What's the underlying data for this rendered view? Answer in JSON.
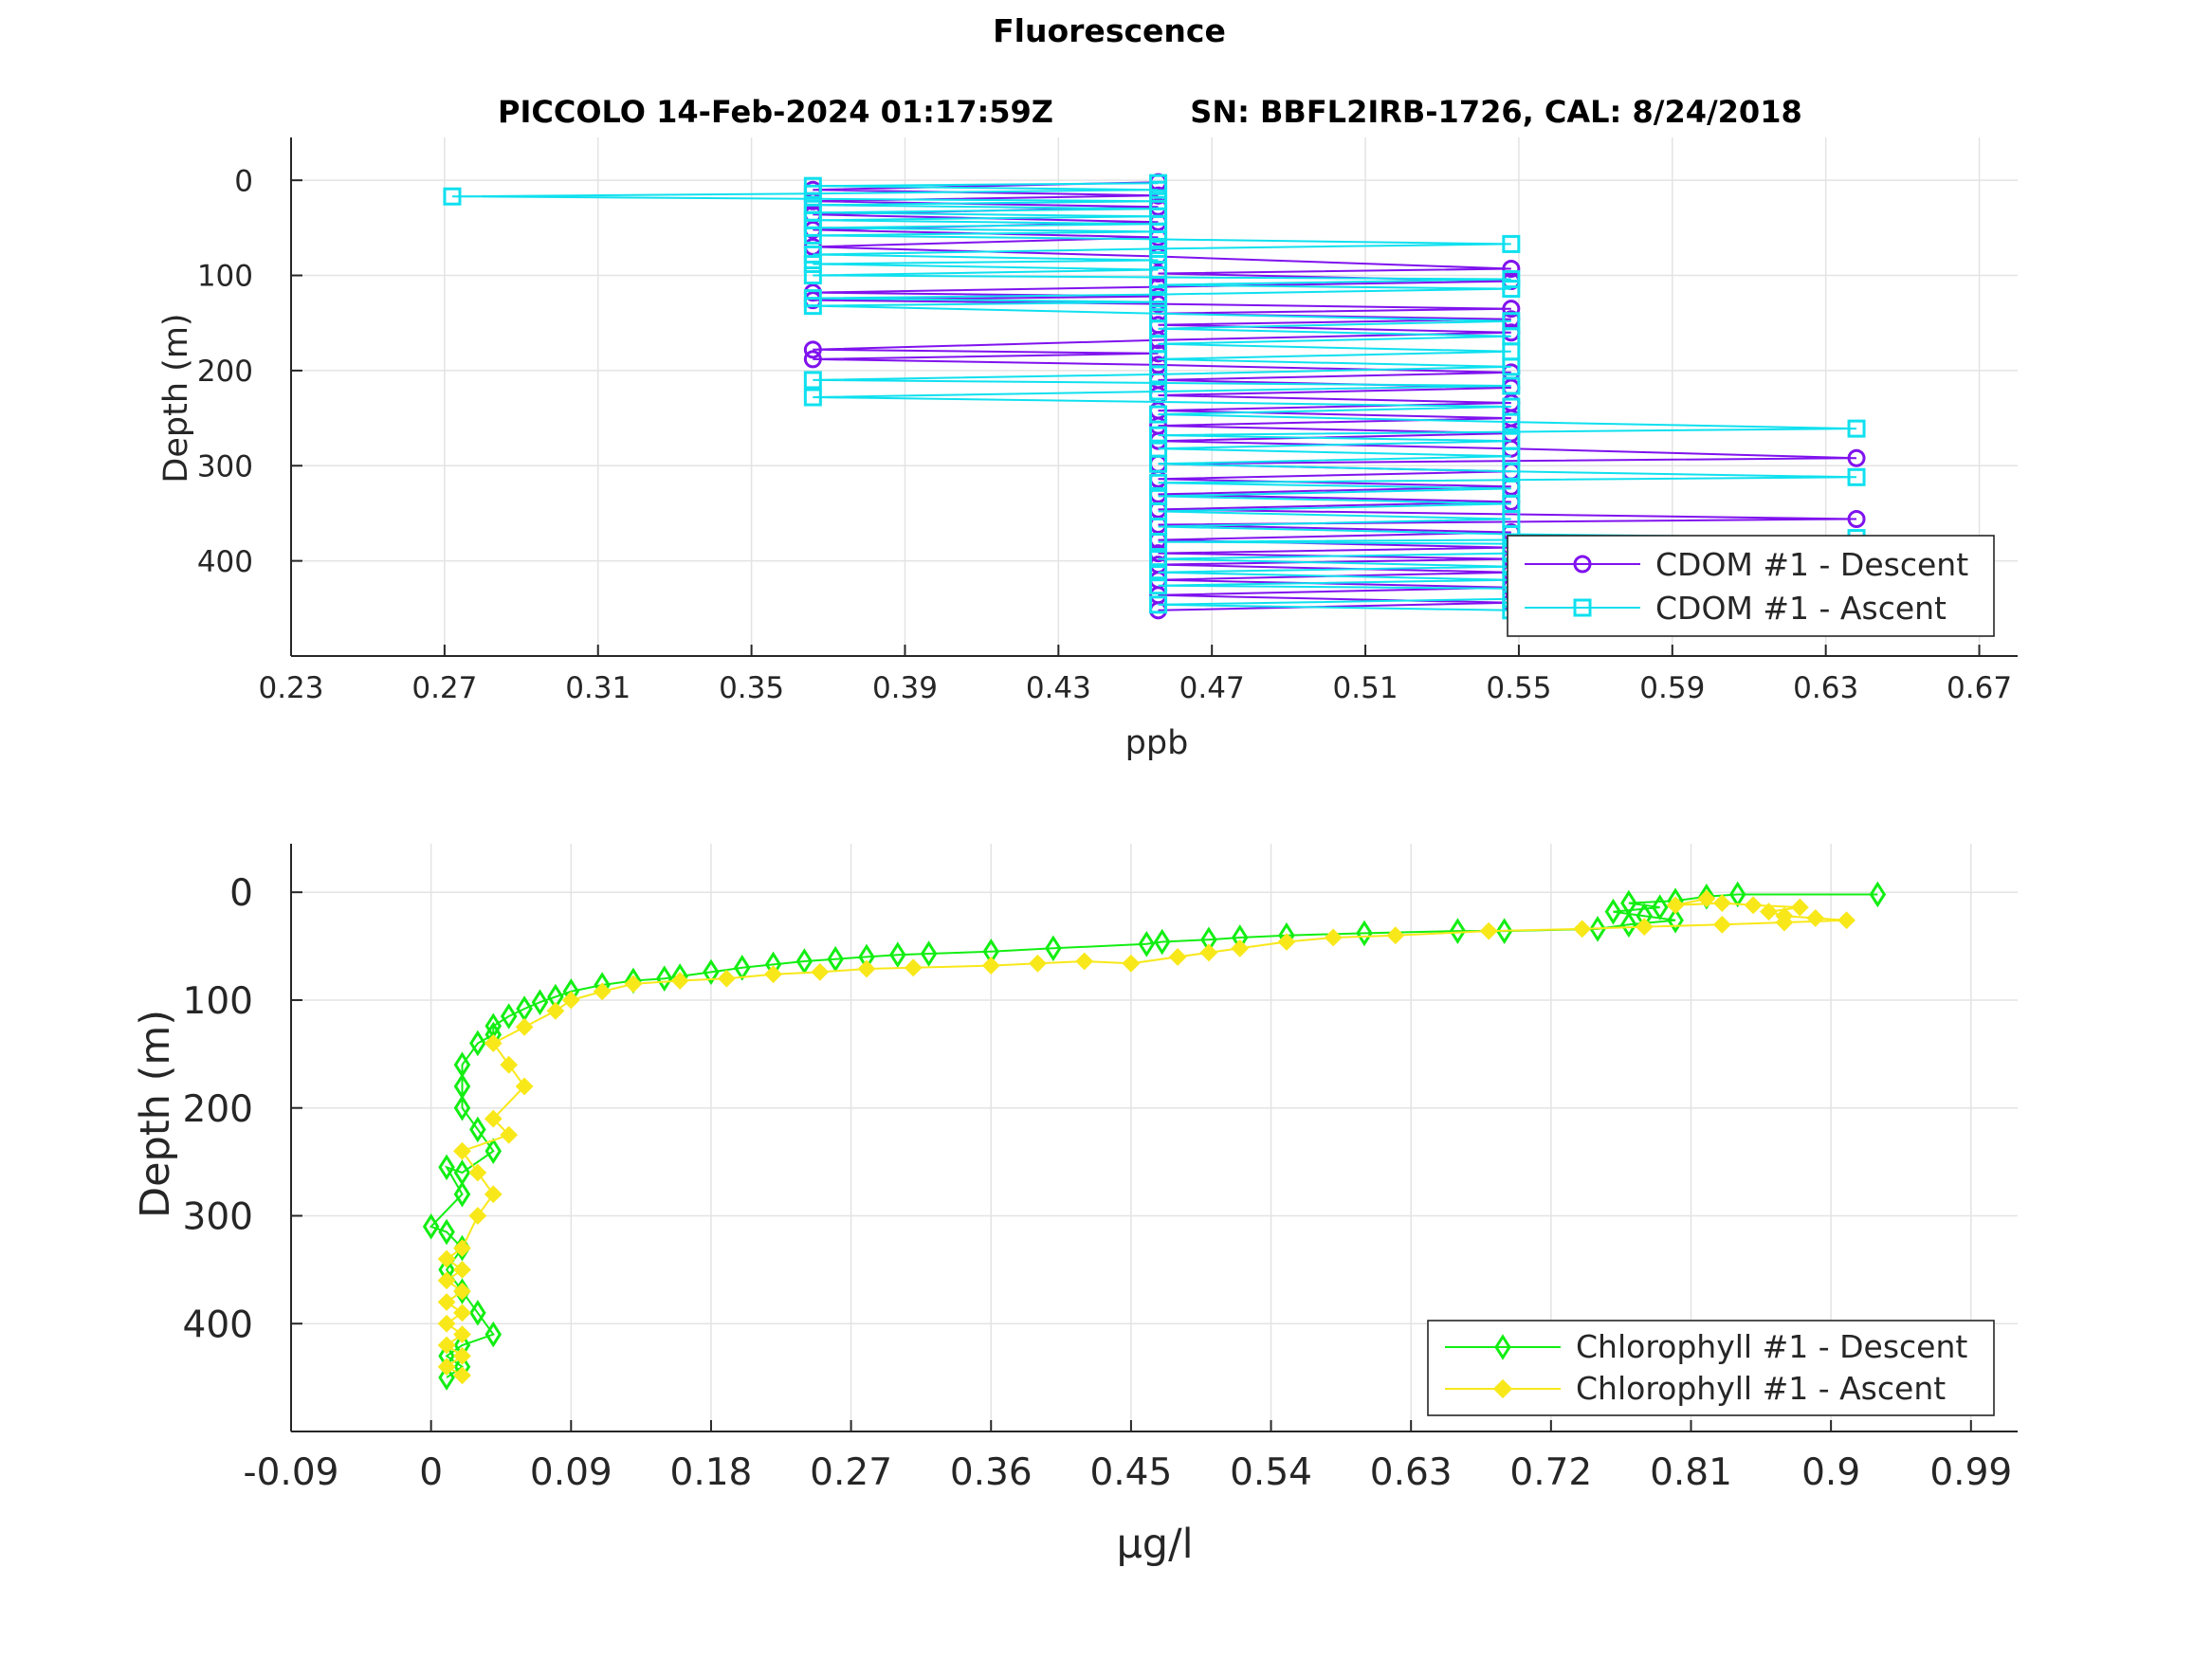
{
  "figure": {
    "title": "Fluorescence",
    "subtitle_left": "PICCOLO 14-Feb-2024 01:17:59Z",
    "subtitle_right": "SN: BBFL2IRB-1726, CAL: 8/24/2018"
  },
  "colors": {
    "cdom_descent": "#7f12ee",
    "cdom_ascent": "#0fe0ef",
    "chl_descent": "#12ee12",
    "chl_ascent": "#f8e81a",
    "grid": "#e3e3e3",
    "axis": "#262626",
    "legend_border": "#262626"
  },
  "chart_data": [
    {
      "type": "line",
      "xlabel": "ppb",
      "ylabel": "Depth (m)",
      "xlim": [
        0.23,
        0.68
      ],
      "ylim": [
        -45,
        500
      ],
      "y_reversed": true,
      "grid": true,
      "legend_position": "bottom-right",
      "xticks": [
        0.23,
        0.27,
        0.31,
        0.35,
        0.39,
        0.43,
        0.47,
        0.51,
        0.55,
        0.59,
        0.63,
        0.67
      ],
      "xtick_labels": [
        "0.23",
        "0.27",
        "0.31",
        "0.35",
        "0.39",
        "0.43",
        "0.47",
        "0.51",
        "0.55",
        "0.59",
        "0.63",
        "0.67"
      ],
      "yticks": [
        0,
        100,
        200,
        300,
        400
      ],
      "ytick_labels": [
        "0",
        "100",
        "200",
        "300",
        "400"
      ],
      "series": [
        {
          "name": "CDOM #1 - Descent",
          "marker": "circle",
          "color_key": "cdom_descent",
          "points": [
            [
              0.456,
              2
            ],
            [
              0.366,
              10
            ],
            [
              0.456,
              16
            ],
            [
              0.366,
              22
            ],
            [
              0.456,
              28
            ],
            [
              0.366,
              36
            ],
            [
              0.456,
              44
            ],
            [
              0.366,
              52
            ],
            [
              0.456,
              60
            ],
            [
              0.366,
              70
            ],
            [
              0.456,
              80
            ],
            [
              0.548,
              93
            ],
            [
              0.456,
              98
            ],
            [
              0.548,
              106
            ],
            [
              0.456,
              112
            ],
            [
              0.366,
              118
            ],
            [
              0.456,
              122
            ],
            [
              0.366,
              126
            ],
            [
              0.456,
              130
            ],
            [
              0.548,
              135
            ],
            [
              0.456,
              140
            ],
            [
              0.548,
              146
            ],
            [
              0.456,
              152
            ],
            [
              0.548,
              160
            ],
            [
              0.456,
              168
            ],
            [
              0.366,
              178
            ],
            [
              0.456,
              182
            ],
            [
              0.366,
              188
            ],
            [
              0.456,
              194
            ],
            [
              0.548,
              202
            ],
            [
              0.456,
              210
            ],
            [
              0.548,
              218
            ],
            [
              0.456,
              226
            ],
            [
              0.548,
              234
            ],
            [
              0.456,
              242
            ],
            [
              0.548,
              250
            ],
            [
              0.456,
              258
            ],
            [
              0.548,
              266
            ],
            [
              0.456,
              274
            ],
            [
              0.548,
              282
            ],
            [
              0.638,
              292
            ],
            [
              0.456,
              298
            ],
            [
              0.548,
              306
            ],
            [
              0.456,
              314
            ],
            [
              0.548,
              322
            ],
            [
              0.456,
              330
            ],
            [
              0.548,
              338
            ],
            [
              0.456,
              346
            ],
            [
              0.638,
              356
            ],
            [
              0.456,
              362
            ],
            [
              0.548,
              370
            ],
            [
              0.456,
              378
            ],
            [
              0.548,
              386
            ],
            [
              0.456,
              392
            ],
            [
              0.548,
              398
            ],
            [
              0.456,
              404
            ],
            [
              0.548,
              412
            ],
            [
              0.456,
              420
            ],
            [
              0.548,
              428
            ],
            [
              0.456,
              436
            ],
            [
              0.548,
              444
            ],
            [
              0.456,
              452
            ]
          ]
        },
        {
          "name": "CDOM #1 - Ascent",
          "marker": "square",
          "color_key": "cdom_ascent",
          "points": [
            [
              0.548,
              452
            ],
            [
              0.456,
              446
            ],
            [
              0.548,
              440
            ],
            [
              0.638,
              432
            ],
            [
              0.456,
              426
            ],
            [
              0.548,
              420
            ],
            [
              0.456,
              412
            ],
            [
              0.548,
              406
            ],
            [
              0.456,
              398
            ],
            [
              0.548,
              392
            ],
            [
              0.638,
              384
            ],
            [
              0.456,
              380
            ],
            [
              0.638,
              376
            ],
            [
              0.548,
              372
            ],
            [
              0.456,
              364
            ],
            [
              0.548,
              356
            ],
            [
              0.456,
              348
            ],
            [
              0.548,
              340
            ],
            [
              0.456,
              332
            ],
            [
              0.548,
              324
            ],
            [
              0.456,
              318
            ],
            [
              0.638,
              312
            ],
            [
              0.548,
              306
            ],
            [
              0.456,
              298
            ],
            [
              0.548,
              290
            ],
            [
              0.456,
              282
            ],
            [
              0.548,
              274
            ],
            [
              0.456,
              268
            ],
            [
              0.638,
              261
            ],
            [
              0.548,
              254
            ],
            [
              0.456,
              246
            ],
            [
              0.548,
              238
            ],
            [
              0.366,
              228
            ],
            [
              0.456,
              222
            ],
            [
              0.548,
              216
            ],
            [
              0.366,
              210
            ],
            [
              0.456,
              204
            ],
            [
              0.548,
              196
            ],
            [
              0.456,
              188
            ],
            [
              0.548,
              180
            ],
            [
              0.456,
              172
            ],
            [
              0.548,
              164
            ],
            [
              0.456,
              156
            ],
            [
              0.548,
              148
            ],
            [
              0.456,
              140
            ],
            [
              0.366,
              132
            ],
            [
              0.456,
              128
            ],
            [
              0.366,
              124
            ],
            [
              0.456,
              120
            ],
            [
              0.548,
              114
            ],
            [
              0.456,
              110
            ],
            [
              0.548,
              104
            ],
            [
              0.366,
              100
            ],
            [
              0.456,
              94
            ],
            [
              0.366,
              88
            ],
            [
              0.456,
              84
            ],
            [
              0.366,
              78
            ],
            [
              0.456,
              72
            ],
            [
              0.548,
              67
            ],
            [
              0.456,
              62
            ],
            [
              0.366,
              58
            ],
            [
              0.456,
              54
            ],
            [
              0.366,
              50
            ],
            [
              0.456,
              46
            ],
            [
              0.366,
              42
            ],
            [
              0.456,
              38
            ],
            [
              0.366,
              34
            ],
            [
              0.456,
              30
            ],
            [
              0.366,
              26
            ],
            [
              0.456,
              22
            ],
            [
              0.272,
              17
            ],
            [
              0.366,
              14
            ],
            [
              0.456,
              10
            ],
            [
              0.366,
              6
            ],
            [
              0.456,
              3
            ]
          ]
        }
      ]
    },
    {
      "type": "line",
      "xlabel": "μg/l",
      "ylabel": "Depth (m)",
      "xlim": [
        -0.09,
        1.02
      ],
      "ylim": [
        -45,
        500
      ],
      "y_reversed": true,
      "grid": true,
      "legend_position": "bottom-right",
      "xticks": [
        -0.09,
        0,
        0.09,
        0.18,
        0.27,
        0.36,
        0.45,
        0.54,
        0.63,
        0.72,
        0.81,
        0.9,
        0.99
      ],
      "xtick_labels": [
        "-0.09",
        "0",
        "0.09",
        "0.18",
        "0.27",
        "0.36",
        "0.45",
        "0.54",
        "0.63",
        "0.72",
        "0.81",
        "0.9",
        "0.99"
      ],
      "yticks": [
        0,
        100,
        200,
        300,
        400
      ],
      "ytick_labels": [
        "0",
        "100",
        "200",
        "300",
        "400"
      ],
      "series": [
        {
          "name": "Chlorophyll #1 - Descent",
          "marker": "diamond",
          "color_key": "chl_descent",
          "points": [
            [
              0.93,
              2
            ],
            [
              0.84,
              2
            ],
            [
              0.82,
              4
            ],
            [
              0.8,
              8
            ],
            [
              0.77,
              10
            ],
            [
              0.79,
              14
            ],
            [
              0.76,
              18
            ],
            [
              0.78,
              22
            ],
            [
              0.8,
              26
            ],
            [
              0.77,
              30
            ],
            [
              0.75,
              34
            ],
            [
              0.69,
              36
            ],
            [
              0.66,
              36
            ],
            [
              0.6,
              38
            ],
            [
              0.55,
              40
            ],
            [
              0.52,
              42
            ],
            [
              0.5,
              44
            ],
            [
              0.47,
              46
            ],
            [
              0.46,
              48
            ],
            [
              0.4,
              52
            ],
            [
              0.36,
              55
            ],
            [
              0.32,
              57
            ],
            [
              0.3,
              58
            ],
            [
              0.28,
              60
            ],
            [
              0.26,
              62
            ],
            [
              0.24,
              64
            ],
            [
              0.22,
              67
            ],
            [
              0.2,
              70
            ],
            [
              0.18,
              74
            ],
            [
              0.16,
              78
            ],
            [
              0.15,
              80
            ],
            [
              0.13,
              82
            ],
            [
              0.11,
              86
            ],
            [
              0.09,
              92
            ],
            [
              0.08,
              97
            ],
            [
              0.07,
              102
            ],
            [
              0.06,
              108
            ],
            [
              0.05,
              115
            ],
            [
              0.04,
              124
            ],
            [
              0.04,
              132
            ],
            [
              0.03,
              140
            ],
            [
              0.02,
              160
            ],
            [
              0.02,
              180
            ],
            [
              0.02,
              200
            ],
            [
              0.03,
              220
            ],
            [
              0.04,
              240
            ],
            [
              0.02,
              260
            ],
            [
              0.01,
              255
            ],
            [
              0.02,
              280
            ],
            [
              0.0,
              310
            ],
            [
              0.01,
              315
            ],
            [
              0.02,
              330
            ],
            [
              0.01,
              350
            ],
            [
              0.02,
              370
            ],
            [
              0.03,
              390
            ],
            [
              0.04,
              410
            ],
            [
              0.02,
              420
            ],
            [
              0.01,
              430
            ],
            [
              0.02,
              440
            ],
            [
              0.01,
              450
            ]
          ]
        },
        {
          "name": "Chlorophyll #1 - Ascent",
          "marker": "star",
          "color_key": "chl_ascent",
          "points": [
            [
              0.02,
              448
            ],
            [
              0.01,
              440
            ],
            [
              0.02,
              430
            ],
            [
              0.01,
              420
            ],
            [
              0.02,
              410
            ],
            [
              0.01,
              400
            ],
            [
              0.02,
              390
            ],
            [
              0.01,
              380
            ],
            [
              0.02,
              370
            ],
            [
              0.01,
              360
            ],
            [
              0.02,
              350
            ],
            [
              0.01,
              340
            ],
            [
              0.02,
              330
            ],
            [
              0.03,
              300
            ],
            [
              0.04,
              280
            ],
            [
              0.03,
              260
            ],
            [
              0.02,
              240
            ],
            [
              0.05,
              225
            ],
            [
              0.04,
              210
            ],
            [
              0.06,
              180
            ],
            [
              0.05,
              160
            ],
            [
              0.04,
              140
            ],
            [
              0.06,
              125
            ],
            [
              0.08,
              110
            ],
            [
              0.09,
              100
            ],
            [
              0.11,
              92
            ],
            [
              0.13,
              85
            ],
            [
              0.16,
              82
            ],
            [
              0.19,
              80
            ],
            [
              0.22,
              76
            ],
            [
              0.25,
              74
            ],
            [
              0.28,
              71
            ],
            [
              0.31,
              70
            ],
            [
              0.36,
              68
            ],
            [
              0.39,
              66
            ],
            [
              0.42,
              64
            ],
            [
              0.45,
              66
            ],
            [
              0.48,
              60
            ],
            [
              0.5,
              56
            ],
            [
              0.52,
              52
            ],
            [
              0.55,
              46
            ],
            [
              0.58,
              42
            ],
            [
              0.62,
              40
            ],
            [
              0.68,
              36
            ],
            [
              0.74,
              34
            ],
            [
              0.78,
              32
            ],
            [
              0.83,
              30
            ],
            [
              0.87,
              28
            ],
            [
              0.91,
              26
            ],
            [
              0.89,
              24
            ],
            [
              0.87,
              22
            ],
            [
              0.86,
              18
            ],
            [
              0.88,
              14
            ],
            [
              0.85,
              12
            ],
            [
              0.83,
              10
            ],
            [
              0.8,
              12
            ],
            [
              0.82,
              6
            ]
          ]
        }
      ]
    }
  ]
}
